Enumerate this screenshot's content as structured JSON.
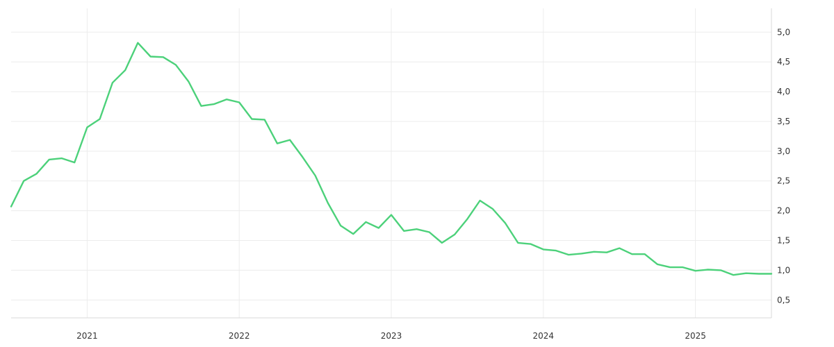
{
  "chart_data": {
    "type": "line",
    "title": "",
    "xlabel": "",
    "ylabel": "",
    "grid": true,
    "legend": "none",
    "xlim": [
      "2020-07",
      "2025-07"
    ],
    "ylim": [
      0.2,
      5.4
    ],
    "y_ticks": [
      "0,5",
      "1,0",
      "1,5",
      "2,0",
      "2,5",
      "3,0",
      "3,5",
      "4,0",
      "4,5",
      "5,0"
    ],
    "x_ticks": [
      {
        "label": "2021",
        "date": "2021-01"
      },
      {
        "label": "2022",
        "date": "2022-01"
      },
      {
        "label": "2023",
        "date": "2023-01"
      },
      {
        "label": "2024",
        "date": "2024-01"
      },
      {
        "label": "2025",
        "date": "2025-01"
      }
    ],
    "series": [
      {
        "color": "#4cd17a",
        "x": [
          "2020-07",
          "2020-08",
          "2020-09",
          "2020-10",
          "2020-11",
          "2020-12",
          "2021-01",
          "2021-02",
          "2021-03",
          "2021-04",
          "2021-05",
          "2021-06",
          "2021-07",
          "2021-08",
          "2021-09",
          "2021-10",
          "2021-11",
          "2021-12",
          "2022-01",
          "2022-02",
          "2022-03",
          "2022-04",
          "2022-05",
          "2022-06",
          "2022-07",
          "2022-08",
          "2022-09",
          "2022-10",
          "2022-11",
          "2022-12",
          "2023-01",
          "2023-02",
          "2023-03",
          "2023-04",
          "2023-05",
          "2023-06",
          "2023-07",
          "2023-08",
          "2023-09",
          "2023-10",
          "2023-11",
          "2023-12",
          "2024-01",
          "2024-02",
          "2024-03",
          "2024-04",
          "2024-05",
          "2024-06",
          "2024-07",
          "2024-08",
          "2024-09",
          "2024-10",
          "2024-11",
          "2024-12",
          "2025-01",
          "2025-02",
          "2025-03",
          "2025-04",
          "2025-05",
          "2025-06",
          "2025-07"
        ],
        "values": [
          2.07,
          2.5,
          2.62,
          2.86,
          2.88,
          2.81,
          3.4,
          3.54,
          4.15,
          4.36,
          4.82,
          4.59,
          4.58,
          4.45,
          4.17,
          3.76,
          3.79,
          3.87,
          3.82,
          3.54,
          3.53,
          3.13,
          3.19,
          2.9,
          2.59,
          2.13,
          1.75,
          1.61,
          1.81,
          1.71,
          1.93,
          1.66,
          1.69,
          1.64,
          1.46,
          1.6,
          1.86,
          2.17,
          2.03,
          1.79,
          1.46,
          1.44,
          1.35,
          1.33,
          1.26,
          1.28,
          1.31,
          1.3,
          1.37,
          1.27,
          1.27,
          1.1,
          1.05,
          1.05,
          0.99,
          1.01,
          1.0,
          0.92,
          0.95,
          0.94,
          0.94
        ]
      }
    ]
  }
}
